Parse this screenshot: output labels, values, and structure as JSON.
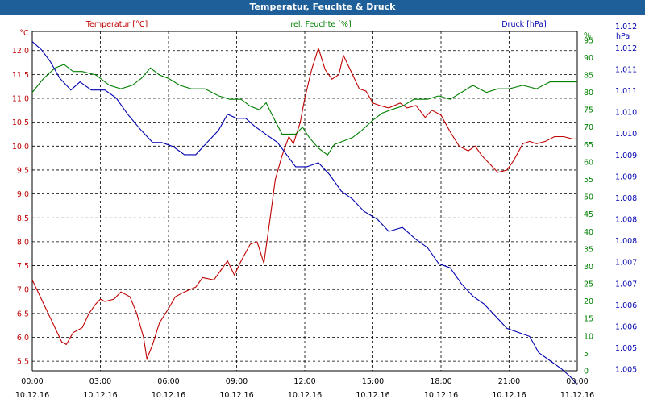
{
  "title": "Temperatur, Feuchte & Druck",
  "colors": {
    "temperature": "#c00000",
    "humidity": "#008000",
    "pressure": "#0000b0",
    "titlebar": "#1e5f9a"
  },
  "chart_data": {
    "type": "line",
    "title": "Temperatur, Feuchte & Druck",
    "grid": true,
    "legend_placement": "top",
    "x_ticks": [
      {
        "time": "00:00",
        "date": "10.12.16"
      },
      {
        "time": "03:00",
        "date": "10.12.16"
      },
      {
        "time": "06:00",
        "date": "10.12.16"
      },
      {
        "time": "09:00",
        "date": "10.12.16"
      },
      {
        "time": "12:00",
        "date": "10.12.16"
      },
      {
        "time": "15:00",
        "date": "10.12.16"
      },
      {
        "time": "18:00",
        "date": "10.12.16"
      },
      {
        "time": "21:00",
        "date": "10.12.16"
      },
      {
        "time": "00:00",
        "date": "11.12.16"
      }
    ],
    "xlim": [
      0,
      24
    ],
    "axes": {
      "temperature": {
        "label": "Temperatur [°C]",
        "unit": "°C",
        "ylim": [
          5.3,
          12.4
        ],
        "ticks": [
          "5.5",
          "6.0",
          "6.5",
          "7.0",
          "7.5",
          "8.0",
          "8.5",
          "9.0",
          "9.5",
          "10.0",
          "10.5",
          "11.0",
          "11.5",
          "12.0"
        ]
      },
      "humidity": {
        "label": "rel. Feuchte [%]",
        "unit": "%",
        "ylim": [
          0,
          97.5
        ],
        "ticks": [
          "0",
          "5",
          "10",
          "15",
          "20",
          "25",
          "30",
          "35",
          "40",
          "45",
          "50",
          "55",
          "60",
          "65",
          "70",
          "75",
          "80",
          "85",
          "90",
          "95"
        ]
      },
      "pressure": {
        "label": "Druck [hPa]",
        "unit": "hPa",
        "ylim": [
          1.00445,
          1.01285
        ],
        "ticks": [
          "1.005",
          "1.005",
          "1.006",
          "1.006",
          "1.007",
          "1.007",
          "1.008",
          "1.008",
          "1.008",
          "1.009",
          "1.009",
          "1.010",
          "1.010",
          "1.011",
          "1.011",
          "1.012",
          "1.012"
        ]
      }
    },
    "series": [
      {
        "name": "Temperatur [°C]",
        "axis": "temperature",
        "values": [
          [
            0,
            7.2
          ],
          [
            0.3,
            6.9
          ],
          [
            0.7,
            6.5
          ],
          [
            1.0,
            6.2
          ],
          [
            1.3,
            5.9
          ],
          [
            1.5,
            5.85
          ],
          [
            1.8,
            6.1
          ],
          [
            2.2,
            6.2
          ],
          [
            2.5,
            6.5
          ],
          [
            2.8,
            6.7
          ],
          [
            3.0,
            6.8
          ],
          [
            3.2,
            6.75
          ],
          [
            3.6,
            6.8
          ],
          [
            3.9,
            6.95
          ],
          [
            4.3,
            6.85
          ],
          [
            4.6,
            6.5
          ],
          [
            4.9,
            6.0
          ],
          [
            5.05,
            5.55
          ],
          [
            5.3,
            5.85
          ],
          [
            5.6,
            6.3
          ],
          [
            6.0,
            6.6
          ],
          [
            6.3,
            6.85
          ],
          [
            6.7,
            6.95
          ],
          [
            7.2,
            7.05
          ],
          [
            7.5,
            7.25
          ],
          [
            8.0,
            7.2
          ],
          [
            8.3,
            7.4
          ],
          [
            8.6,
            7.6
          ],
          [
            8.9,
            7.3
          ],
          [
            9.2,
            7.6
          ],
          [
            9.6,
            7.95
          ],
          [
            9.9,
            8.0
          ],
          [
            10.2,
            7.55
          ],
          [
            10.45,
            8.4
          ],
          [
            10.7,
            9.3
          ],
          [
            11.0,
            9.8
          ],
          [
            11.3,
            10.2
          ],
          [
            11.5,
            10.05
          ],
          [
            11.8,
            10.5
          ],
          [
            12.0,
            11.0
          ],
          [
            12.3,
            11.6
          ],
          [
            12.6,
            12.05
          ],
          [
            12.9,
            11.6
          ],
          [
            13.2,
            11.4
          ],
          [
            13.5,
            11.5
          ],
          [
            13.7,
            11.9
          ],
          [
            14.0,
            11.6
          ],
          [
            14.4,
            11.2
          ],
          [
            14.7,
            11.15
          ],
          [
            15.0,
            10.9
          ],
          [
            15.3,
            10.85
          ],
          [
            15.7,
            10.8
          ],
          [
            16.2,
            10.9
          ],
          [
            16.5,
            10.8
          ],
          [
            16.9,
            10.85
          ],
          [
            17.3,
            10.6
          ],
          [
            17.6,
            10.75
          ],
          [
            18.0,
            10.65
          ],
          [
            18.4,
            10.3
          ],
          [
            18.8,
            10.0
          ],
          [
            19.2,
            9.9
          ],
          [
            19.5,
            10.0
          ],
          [
            19.8,
            9.8
          ],
          [
            20.2,
            9.6
          ],
          [
            20.5,
            9.45
          ],
          [
            20.9,
            9.5
          ],
          [
            21.2,
            9.7
          ],
          [
            21.6,
            10.05
          ],
          [
            21.9,
            10.1
          ],
          [
            22.2,
            10.05
          ],
          [
            22.6,
            10.1
          ],
          [
            23.0,
            10.2
          ],
          [
            23.4,
            10.2
          ],
          [
            23.8,
            10.15
          ],
          [
            24.0,
            10.15
          ]
        ]
      },
      {
        "name": "rel. Feuchte [%]",
        "axis": "humidity",
        "values": [
          [
            0,
            80
          ],
          [
            0.5,
            84
          ],
          [
            1.0,
            87
          ],
          [
            1.4,
            88
          ],
          [
            1.8,
            86
          ],
          [
            2.2,
            86
          ],
          [
            2.8,
            85
          ],
          [
            3.4,
            82
          ],
          [
            3.9,
            81
          ],
          [
            4.4,
            82
          ],
          [
            4.8,
            84
          ],
          [
            5.2,
            87
          ],
          [
            5.6,
            85
          ],
          [
            6.0,
            84
          ],
          [
            6.5,
            82
          ],
          [
            7.0,
            81
          ],
          [
            7.6,
            81
          ],
          [
            8.2,
            79
          ],
          [
            8.7,
            78
          ],
          [
            9.2,
            78
          ],
          [
            9.6,
            76
          ],
          [
            10.0,
            75
          ],
          [
            10.3,
            77
          ],
          [
            10.6,
            73
          ],
          [
            11.0,
            68
          ],
          [
            11.3,
            68
          ],
          [
            11.6,
            68
          ],
          [
            11.9,
            70
          ],
          [
            12.2,
            67
          ],
          [
            12.6,
            64
          ],
          [
            13.0,
            62
          ],
          [
            13.3,
            65
          ],
          [
            13.7,
            66
          ],
          [
            14.1,
            67
          ],
          [
            14.5,
            69
          ],
          [
            15.0,
            72
          ],
          [
            15.4,
            74
          ],
          [
            15.8,
            75
          ],
          [
            16.3,
            76
          ],
          [
            16.8,
            78
          ],
          [
            17.4,
            78
          ],
          [
            17.9,
            79
          ],
          [
            18.4,
            78
          ],
          [
            18.9,
            80
          ],
          [
            19.4,
            82
          ],
          [
            20.0,
            80
          ],
          [
            20.5,
            81
          ],
          [
            21.0,
            81
          ],
          [
            21.6,
            82
          ],
          [
            22.2,
            81
          ],
          [
            22.8,
            83
          ],
          [
            23.4,
            83
          ],
          [
            24.0,
            83
          ]
        ]
      },
      {
        "name": "Druck [hPa]",
        "axis": "pressure",
        "values": [
          [
            0,
            1.0126
          ],
          [
            0.4,
            1.0124
          ],
          [
            0.8,
            1.0121
          ],
          [
            1.2,
            1.0117
          ],
          [
            1.7,
            1.0114
          ],
          [
            2.1,
            1.0116
          ],
          [
            2.6,
            1.0114
          ],
          [
            3.2,
            1.0114
          ],
          [
            3.7,
            1.0112
          ],
          [
            4.2,
            1.0108
          ],
          [
            4.8,
            1.0104
          ],
          [
            5.3,
            1.0101
          ],
          [
            5.7,
            1.0101
          ],
          [
            6.2,
            1.01
          ],
          [
            6.7,
            1.0098
          ],
          [
            7.2,
            1.0098
          ],
          [
            7.7,
            1.0101
          ],
          [
            8.2,
            1.0104
          ],
          [
            8.6,
            1.0108
          ],
          [
            9.0,
            1.0107
          ],
          [
            9.4,
            1.0107
          ],
          [
            9.8,
            1.0105
          ],
          [
            10.3,
            1.0103
          ],
          [
            10.8,
            1.0101
          ],
          [
            11.2,
            1.0098
          ],
          [
            11.6,
            1.0095
          ],
          [
            12.1,
            1.0095
          ],
          [
            12.6,
            1.0096
          ],
          [
            13.1,
            1.0093
          ],
          [
            13.6,
            1.0089
          ],
          [
            14.1,
            1.0087
          ],
          [
            14.6,
            1.0084
          ],
          [
            15.2,
            1.0082
          ],
          [
            15.7,
            1.0079
          ],
          [
            16.3,
            1.008
          ],
          [
            16.9,
            1.0077
          ],
          [
            17.4,
            1.0075
          ],
          [
            17.9,
            1.0071
          ],
          [
            18.4,
            1.007
          ],
          [
            18.9,
            1.0066
          ],
          [
            19.4,
            1.0063
          ],
          [
            19.9,
            1.0061
          ],
          [
            20.4,
            1.0058
          ],
          [
            20.9,
            1.0055
          ],
          [
            21.4,
            1.0054
          ],
          [
            21.9,
            1.0053
          ],
          [
            22.3,
            1.0049
          ],
          [
            22.8,
            1.0047
          ],
          [
            23.3,
            1.0045
          ],
          [
            23.7,
            1.0043
          ],
          [
            24.0,
            1.0041
          ]
        ]
      }
    ]
  }
}
